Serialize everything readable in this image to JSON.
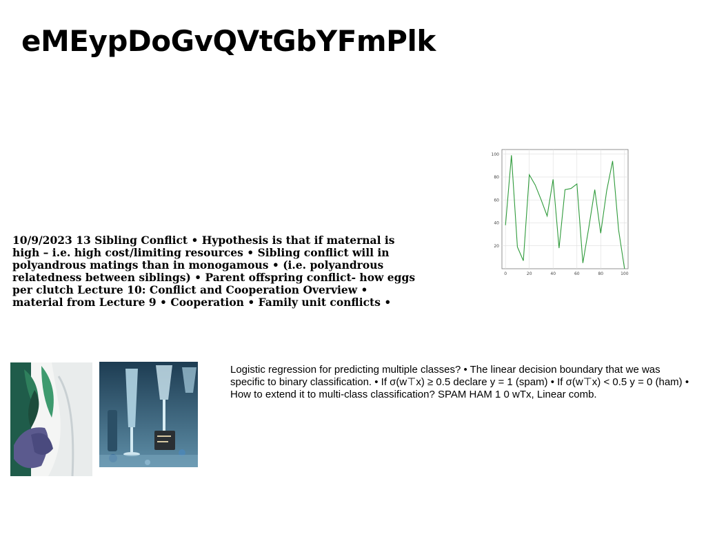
{
  "title": "eMEypDoGvQVtGbYFmPlk",
  "text_left": "10/9/2023 13 Sibling Conflict • Hypothesis is that if maternal is high – i.e. high cost/limiting resources • Sibling conflict will in polyandrous matings than in monogamous • (i.e. polyandrous relatedness between siblings) • Parent offspring conflict- how eggs per clutch Lecture 10: Conflict and Cooperation Overview • material from Lecture 9 • Cooperation • Family unit conflicts •",
  "text_right": "Logistic regression for predicting multiple classes? • The linear decision boundary that we was specific to binary classification. • If σ(w⊤x) ≥ 0.5 declare y = 1 (spam) • If σ(w⊤x) < 0.5 y = 0 (ham) • How to extend it to multi-class classification? SPAM HAM 1 0 wTx, Linear comb.",
  "chart_data": {
    "type": "line",
    "x": [
      0,
      5,
      10,
      15,
      20,
      25,
      30,
      35,
      40,
      45,
      50,
      55,
      60,
      65,
      70,
      75,
      80,
      85,
      90,
      95,
      100
    ],
    "series": [
      {
        "values": [
          38,
          99,
          19,
          7,
          82,
          73,
          60,
          46,
          78,
          18,
          69,
          70,
          74,
          5,
          36,
          69,
          31,
          68,
          94,
          34,
          0
        ]
      }
    ],
    "x_ticks": [
      0,
      20,
      40,
      60,
      80,
      100
    ],
    "y_ticks": [
      20,
      40,
      60,
      80,
      100
    ],
    "xlim": [
      -3,
      103
    ],
    "ylim": [
      0,
      104
    ],
    "grid": true,
    "color": "#2e9a3a"
  }
}
